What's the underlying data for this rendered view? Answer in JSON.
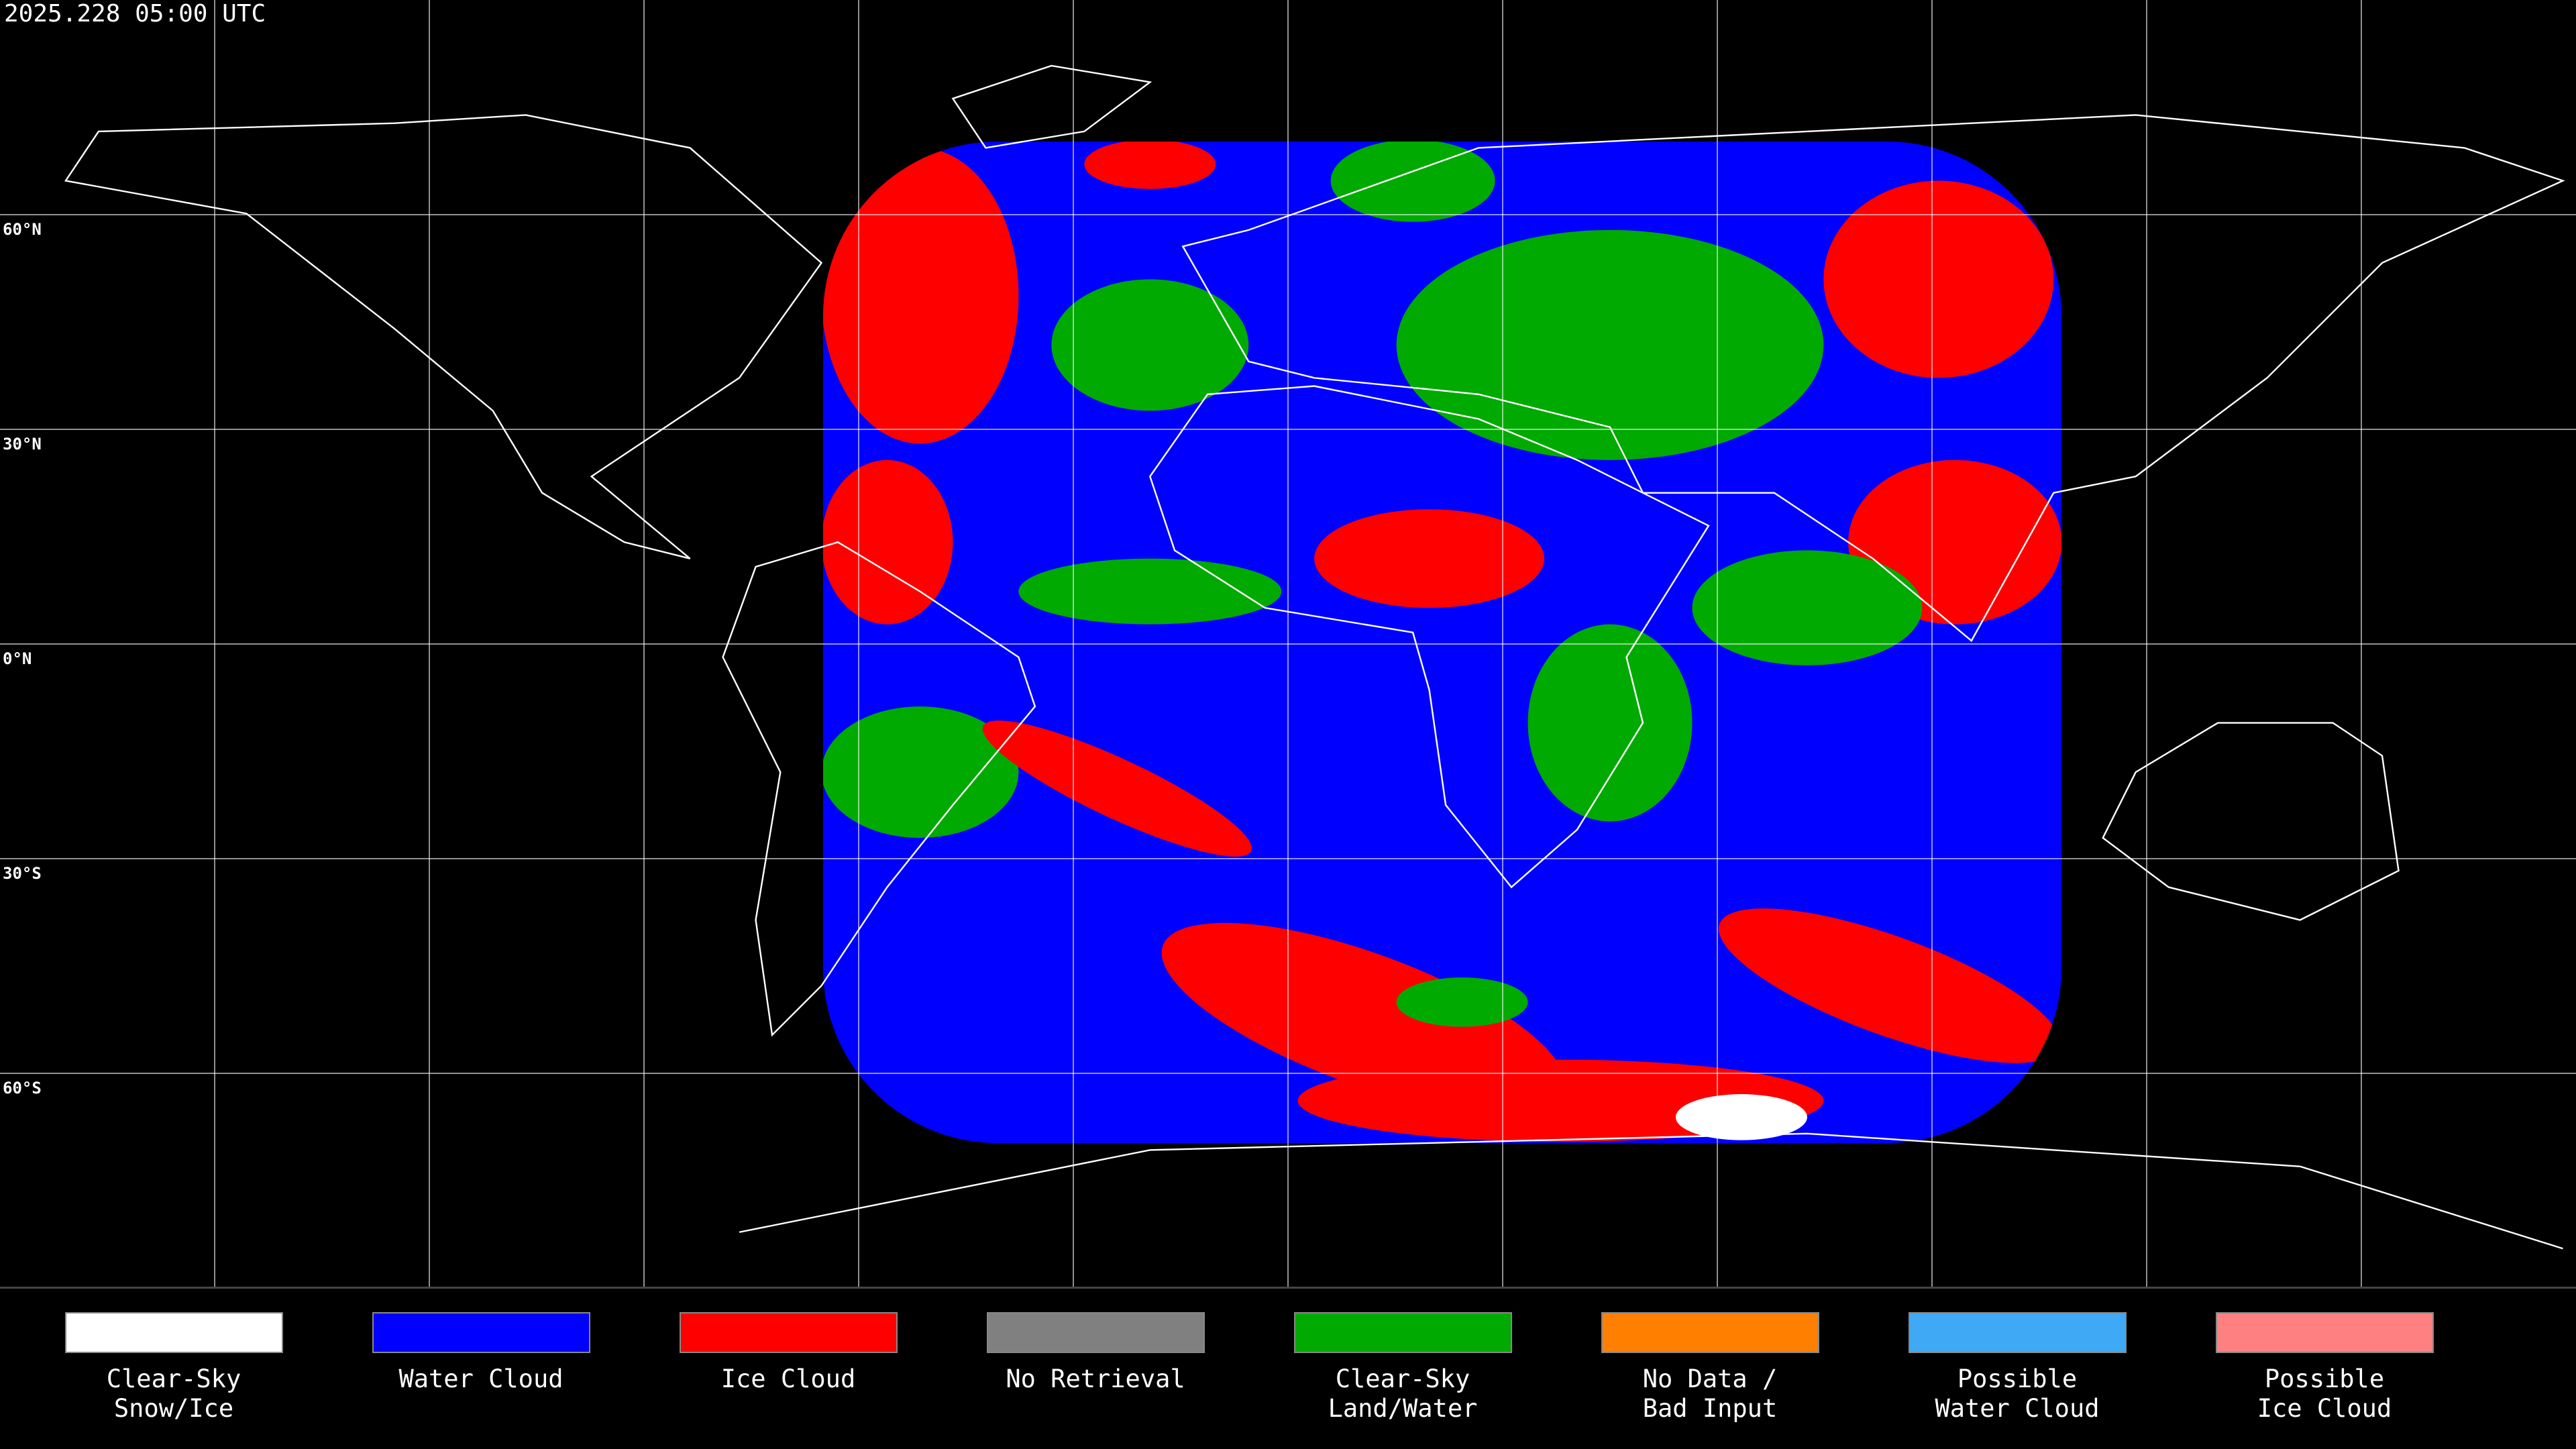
{
  "timestamp": "2025.228 05:00 UTC",
  "latitude_labels": [
    "60°N",
    "30°N",
    "0°N",
    "30°S",
    "60°S"
  ],
  "legend": [
    {
      "color": "#ffffff",
      "lines": [
        "Clear-Sky",
        "Snow/Ice"
      ]
    },
    {
      "color": "#0000ff",
      "lines": [
        "Water Cloud"
      ]
    },
    {
      "color": "#ff0000",
      "lines": [
        "Ice Cloud"
      ]
    },
    {
      "color": "#808080",
      "lines": [
        "No Retrieval"
      ]
    },
    {
      "color": "#00aa00",
      "lines": [
        "Clear-Sky",
        "Land/Water"
      ]
    },
    {
      "color": "#ff8000",
      "lines": [
        "No Data /",
        "Bad Input"
      ]
    },
    {
      "color": "#3fa9f5",
      "lines": [
        "Possible",
        "Water Cloud"
      ]
    },
    {
      "color": "#ff8080",
      "lines": [
        "Possible",
        "Ice Cloud"
      ]
    }
  ]
}
